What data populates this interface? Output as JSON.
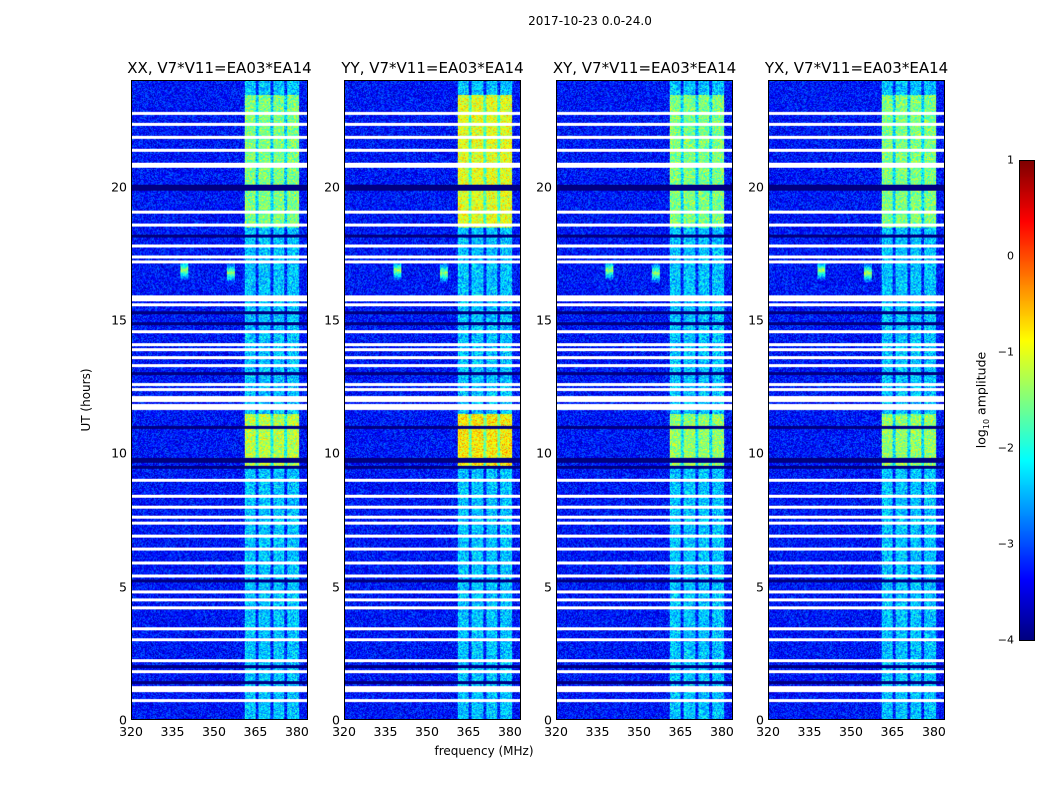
{
  "chart_data": {
    "type": "heatmap",
    "title": "2017-10-23 0.0-24.0",
    "xlabel": "frequency (MHz)",
    "ylabel": "UT (hours)",
    "xlim": [
      320,
      384
    ],
    "ylim": [
      0,
      24
    ],
    "xticks": [
      "320",
      "335",
      "350",
      "365",
      "380"
    ],
    "xtick_values": [
      320,
      335,
      350,
      365,
      380
    ],
    "yticks": [
      "0",
      "5",
      "10",
      "15",
      "20"
    ],
    "ytick_values": [
      0,
      5,
      10,
      15,
      20
    ],
    "panels": [
      {
        "title": "XX, V7*V11=EA03*EA14",
        "band_boost": [
          [
            9.5,
            11.5,
            1.2
          ],
          [
            18.5,
            23.5,
            0.9
          ]
        ]
      },
      {
        "title": "YY, V7*V11=EA03*EA14",
        "band_boost": [
          [
            9.5,
            11.5,
            1.6
          ],
          [
            18.5,
            23.5,
            1.4
          ]
        ]
      },
      {
        "title": "XY, V7*V11=EA03*EA14",
        "band_boost": [
          [
            9.5,
            11.5,
            1.0
          ],
          [
            18.5,
            23.5,
            0.9
          ]
        ]
      },
      {
        "title": "YX, V7*V11=EA03*EA14",
        "band_boost": [
          [
            9.5,
            11.5,
            1.0
          ],
          [
            18.5,
            23.5,
            0.9
          ]
        ]
      }
    ],
    "colorbar": {
      "label_prefix": "log",
      "label_sub": "10",
      "label_suffix": " amplitude",
      "range": [
        -4,
        1
      ],
      "ticks": [
        "1",
        "0",
        "−1",
        "−2",
        "−3",
        "−4"
      ],
      "tick_values": [
        1,
        0,
        -1,
        -2,
        -3,
        -4
      ],
      "colormap": "jet"
    },
    "background_level": -3.3,
    "bright_band_mhz": [
      361,
      381
    ],
    "dark_channels_mhz": [
      365.5,
      371,
      376
    ],
    "rfi_spikes": [
      {
        "mhz": 339,
        "ut": 16.9
      },
      {
        "mhz": 356,
        "ut": 16.8
      }
    ],
    "flagged_white_ut": [
      22.8,
      22.4,
      21.9,
      21.4,
      20.9,
      20.8,
      19.1,
      18.6,
      17.8,
      17.4,
      17.2,
      15.9,
      15.8,
      15.6,
      14.6,
      14.1,
      13.9,
      13.6,
      13.3,
      12.6,
      12.4,
      12.1,
      12.0,
      11.8,
      11.7,
      9.0,
      8.4,
      8.0,
      7.6,
      7.4,
      6.9,
      6.4,
      5.9,
      5.4,
      4.8,
      4.5,
      4.2,
      3.4,
      3.0,
      2.2,
      1.8,
      1.2,
      1.1,
      0.7
    ],
    "flagged_black_ut": [
      20.05,
      19.95,
      18.2,
      15.3,
      14.9,
      13.0,
      11.0,
      9.8,
      9.7,
      9.5,
      5.2,
      2.0,
      1.4
    ]
  }
}
